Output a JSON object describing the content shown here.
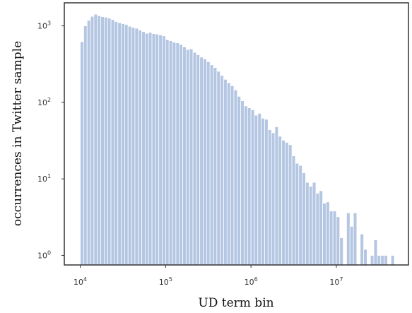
{
  "chart_data": {
    "type": "bar",
    "title": "",
    "xlabel": "UD term bin",
    "ylabel": "occurrences in Twitter sample",
    "x_scale": "log",
    "y_scale": "log",
    "xlim": [
      6500,
      70000000
    ],
    "ylim": [
      0.75,
      2000
    ],
    "grid": false,
    "x_ticks": [
      {
        "value": 10000,
        "base": "10",
        "exp": "4"
      },
      {
        "value": 100000,
        "base": "10",
        "exp": "5"
      },
      {
        "value": 1000000,
        "base": "10",
        "exp": "6"
      },
      {
        "value": 10000000,
        "base": "10",
        "exp": "7"
      }
    ],
    "y_ticks": [
      {
        "value": 1,
        "base": "10",
        "exp": "0"
      },
      {
        "value": 10,
        "base": "10",
        "exp": "1"
      },
      {
        "value": 100,
        "base": "10",
        "exp": "2"
      },
      {
        "value": 1000,
        "base": "10",
        "exp": "3"
      }
    ],
    "bar_color": "#b4c6e2",
    "bar_edge_color": "#ffffff",
    "bin_edges_log10": [
      4.0,
      4.04,
      4.08,
      4.12,
      4.16,
      4.2,
      4.24,
      4.28,
      4.32,
      4.36,
      4.4,
      4.44,
      4.48,
      4.52,
      4.56,
      4.6,
      4.64,
      4.68,
      4.72,
      4.76,
      4.8,
      4.84,
      4.88,
      4.92,
      4.96,
      5.0,
      5.04,
      5.08,
      5.12,
      5.16,
      5.2,
      5.24,
      5.28,
      5.32,
      5.36,
      5.4,
      5.44,
      5.48,
      5.52,
      5.56,
      5.6,
      5.64,
      5.68,
      5.72,
      5.76,
      5.8,
      5.84,
      5.88,
      5.92,
      5.96,
      6.0,
      6.04,
      6.08,
      6.12,
      6.16,
      6.2,
      6.24,
      6.28,
      6.32,
      6.36,
      6.4,
      6.44,
      6.48,
      6.52,
      6.56,
      6.6,
      6.64,
      6.68,
      6.72,
      6.76,
      6.8,
      6.84,
      6.88,
      6.92,
      6.96,
      7.0,
      7.04,
      7.08,
      7.12,
      7.16,
      7.2,
      7.24,
      7.28,
      7.32,
      7.36,
      7.4,
      7.44,
      7.48,
      7.52,
      7.56,
      7.6,
      7.64,
      7.68,
      7.72,
      7.76
    ],
    "counts": [
      620,
      1000,
      1180,
      1330,
      1420,
      1360,
      1320,
      1300,
      1260,
      1210,
      1140,
      1100,
      1070,
      1040,
      990,
      950,
      930,
      880,
      840,
      800,
      820,
      790,
      780,
      760,
      740,
      660,
      640,
      610,
      600,
      570,
      530,
      490,
      500,
      450,
      420,
      390,
      370,
      340,
      310,
      285,
      255,
      225,
      200,
      180,
      165,
      145,
      120,
      105,
      90,
      85,
      80,
      68,
      72,
      62,
      60,
      44,
      40,
      48,
      36,
      32,
      30,
      28,
      20,
      16,
      15,
      12,
      9,
      8,
      9,
      6.5,
      7,
      4.8,
      5,
      3.8,
      3.8,
      3.2,
      1.7,
      0,
      3.6,
      2.4,
      3.6,
      0,
      1.9,
      1.2,
      0,
      1,
      1.6,
      1,
      1,
      1,
      0,
      1,
      0,
      0,
      1
    ]
  }
}
